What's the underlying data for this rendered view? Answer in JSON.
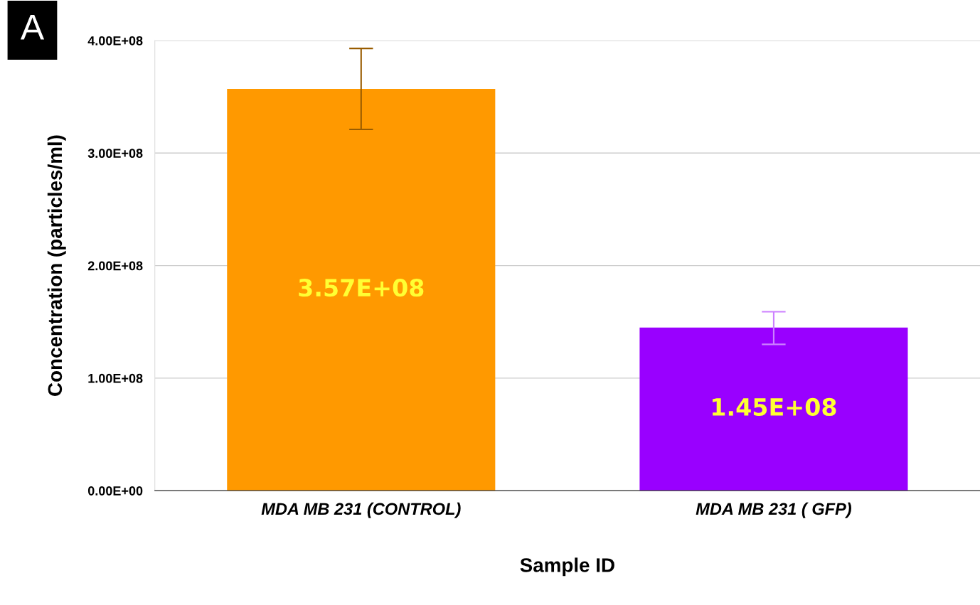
{
  "chart_data": {
    "type": "bar",
    "xlabel": "Sample ID",
    "ylabel": "Concentration (particles/ml)",
    "categories": [
      "MDA MB 231 (CONTROL)",
      "MDA MB 231 ( GFP)"
    ],
    "values": [
      357000000,
      145000000
    ],
    "colors": [
      "#ff9900",
      "#9900ff"
    ],
    "errors": [
      [
        321000000,
        393000000
      ],
      [
        130000000,
        159000000
      ]
    ],
    "value_labels": [
      "3.57E+08",
      "1.45E+08"
    ],
    "ylim": [
      0,
      400000000
    ],
    "yticks": [
      {
        "value": 0,
        "label": "0.00E+00"
      },
      {
        "value": 100000000,
        "label": "1.00E+08"
      },
      {
        "value": 200000000,
        "label": "2.00E+08"
      },
      {
        "value": 300000000,
        "label": "3.00E+08"
      },
      {
        "value": 400000000,
        "label": "4.00E+08"
      }
    ],
    "grid": "y",
    "legend": false,
    "annotations": [
      "A"
    ]
  }
}
